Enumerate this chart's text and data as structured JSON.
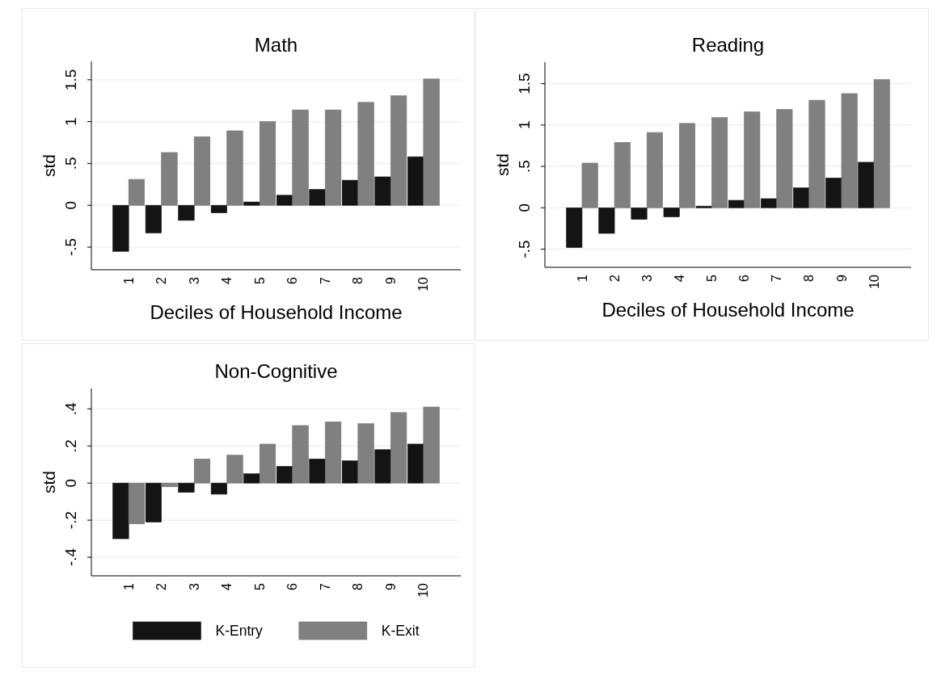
{
  "chart_data": [
    {
      "type": "bar",
      "title": "Math",
      "xlabel": "Deciles of Household Income",
      "ylabel": "std",
      "categories": [
        "1",
        "2",
        "3",
        "4",
        "5",
        "6",
        "7",
        "8",
        "9",
        "10"
      ],
      "series": [
        {
          "color": "#141414",
          "values": [
            -0.55,
            -0.33,
            -0.18,
            -0.09,
            0.04,
            0.12,
            0.19,
            0.3,
            0.34,
            0.58
          ]
        },
        {
          "color": "#808080",
          "values": [
            0.31,
            0.63,
            0.82,
            0.89,
            1.0,
            1.14,
            1.14,
            1.23,
            1.31,
            1.51
          ]
        }
      ],
      "ylim": [
        -0.77,
        1.72
      ],
      "yticks": [
        {
          "value": -0.5,
          "label": "-.5"
        },
        0,
        {
          "value": 0.5,
          "label": ".5"
        },
        1,
        1.5
      ],
      "grid": "y"
    },
    {
      "type": "bar",
      "title": "Reading",
      "xlabel": "Deciles of Household Income",
      "ylabel": "std",
      "categories": [
        "1",
        "2",
        "3",
        "4",
        "5",
        "6",
        "7",
        "8",
        "9",
        "10"
      ],
      "series": [
        {
          "color": "#141414",
          "values": [
            -0.48,
            -0.31,
            -0.14,
            -0.11,
            0.02,
            0.09,
            0.11,
            0.24,
            0.36,
            0.55
          ]
        },
        {
          "color": "#808080",
          "values": [
            0.54,
            0.79,
            0.91,
            1.02,
            1.09,
            1.16,
            1.19,
            1.3,
            1.38,
            1.55
          ]
        }
      ],
      "ylim": [
        -0.72,
        1.76
      ],
      "yticks": [
        {
          "value": -0.5,
          "label": "-.5"
        },
        0,
        {
          "value": 0.5,
          "label": ".5"
        },
        1,
        1.5
      ],
      "grid": "y"
    },
    {
      "type": "bar",
      "title": "Non-Cognitive",
      "ylabel": "std",
      "categories": [
        "1",
        "2",
        "3",
        "4",
        "5",
        "6",
        "7",
        "8",
        "9",
        "10"
      ],
      "series": [
        {
          "name": "K-Entry",
          "color": "#141414",
          "values": [
            -0.3,
            -0.21,
            -0.05,
            -0.06,
            0.05,
            0.09,
            0.13,
            0.12,
            0.18,
            0.21
          ]
        },
        {
          "name": "K-Exit",
          "color": "#808080",
          "values": [
            -0.22,
            -0.02,
            0.13,
            0.15,
            0.21,
            0.31,
            0.33,
            0.32,
            0.38,
            0.41
          ]
        }
      ],
      "ylim": [
        -0.5,
        0.51
      ],
      "yticks": [
        {
          "value": -0.4,
          "label": "-.4"
        },
        {
          "value": -0.2,
          "label": "-.2"
        },
        0,
        {
          "value": 0.2,
          "label": ".2"
        },
        {
          "value": 0.4,
          "label": ".4"
        }
      ],
      "grid": "y",
      "legend": "bottom"
    }
  ]
}
